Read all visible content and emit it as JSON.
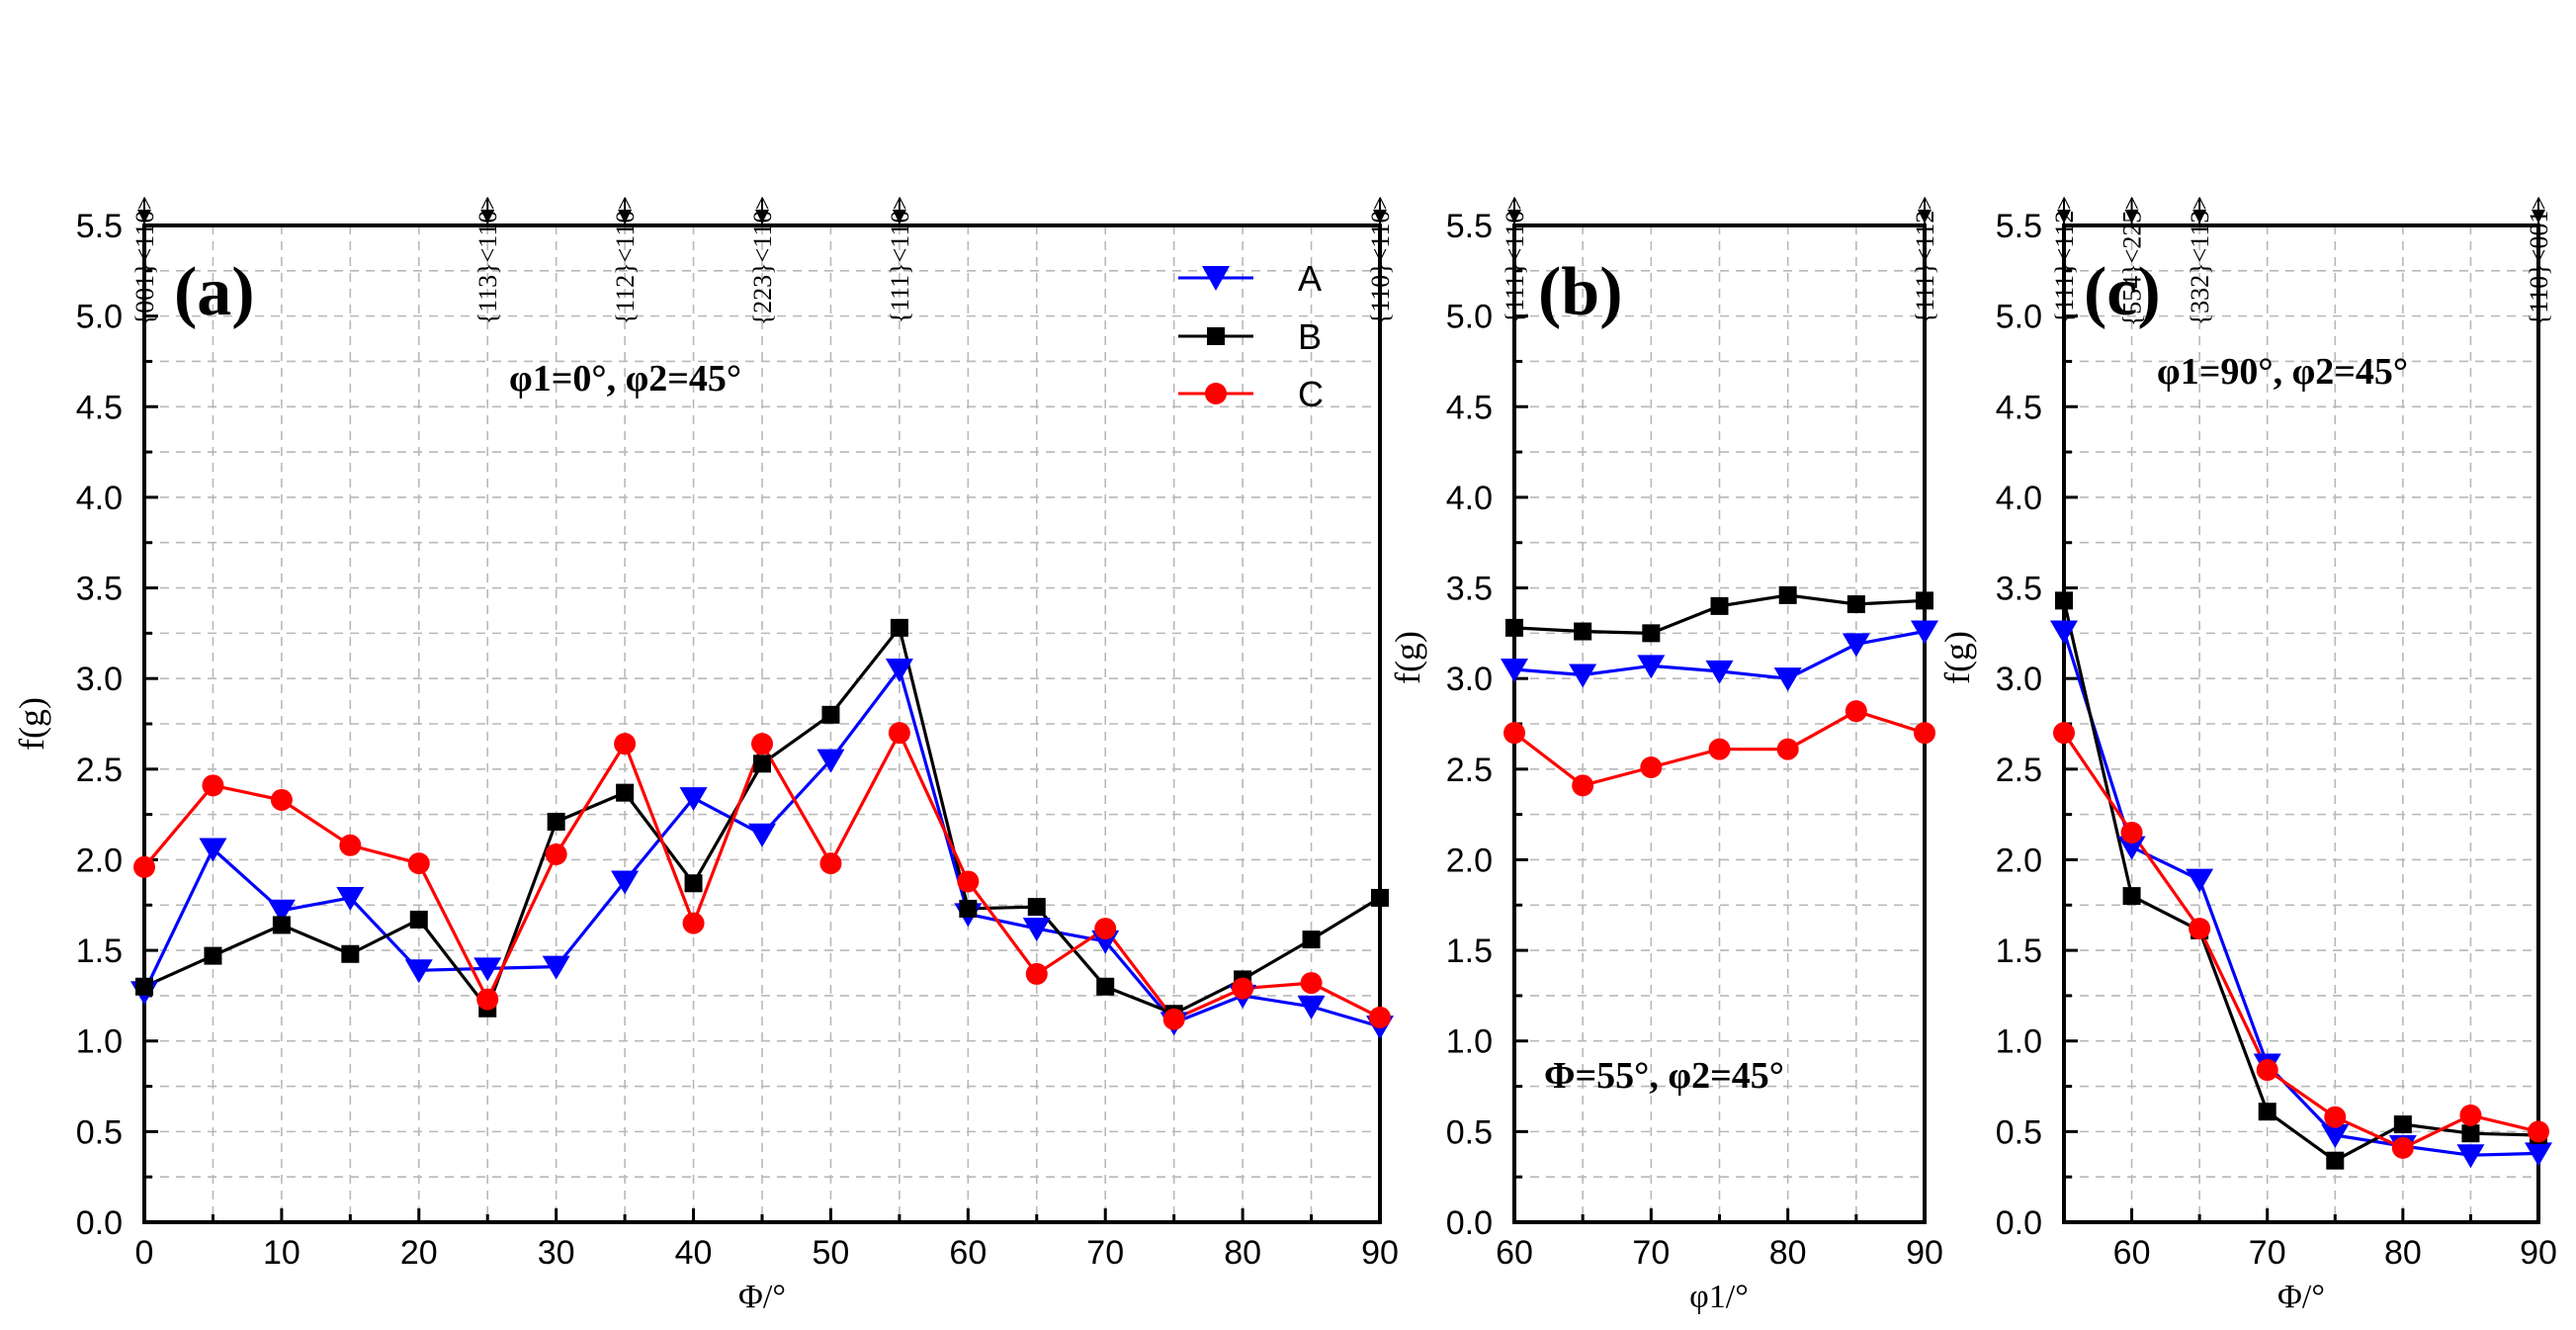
{
  "chart_data": [
    {
      "panel": "(a)",
      "type": "line",
      "subtitle": "φ1=0°, φ2=45°",
      "xlabel": "Φ/°",
      "ylabel": "f(g)",
      "xlim": [
        0,
        90
      ],
      "ylim": [
        0,
        5.5
      ],
      "grid": true,
      "legend": "top-right",
      "xticks": [
        "0",
        "10",
        "20",
        "30",
        "40",
        "50",
        "60",
        "70",
        "80",
        "90"
      ],
      "yticks": [
        "0.0",
        "0.5",
        "1.0",
        "1.5",
        "2.0",
        "2.5",
        "3.0",
        "3.5",
        "4.0",
        "4.5",
        "5.0",
        "5.5"
      ],
      "top_labels": [
        {
          "x": 0,
          "label": "{001}<110>"
        },
        {
          "x": 25,
          "label": "{113}<110>"
        },
        {
          "x": 35,
          "label": "{112}<110>"
        },
        {
          "x": 45,
          "label": "{223}<110>"
        },
        {
          "x": 55,
          "label": "{111}<110>"
        },
        {
          "x": 90,
          "label": "{110}<110>"
        }
      ],
      "x": [
        0,
        5,
        10,
        15,
        20,
        25,
        30,
        35,
        40,
        45,
        50,
        55,
        60,
        65,
        70,
        75,
        80,
        85,
        90
      ],
      "series": [
        {
          "name": "A",
          "color": "#0000ff",
          "marker": "triangle-down",
          "values": [
            1.27,
            2.06,
            1.72,
            1.79,
            1.39,
            1.4,
            1.41,
            1.88,
            2.34,
            2.14,
            2.55,
            3.05,
            1.7,
            1.62,
            1.55,
            1.1,
            1.25,
            1.19,
            1.08
          ]
        },
        {
          "name": "B",
          "color": "#000000",
          "marker": "square",
          "values": [
            1.3,
            1.47,
            1.64,
            1.48,
            1.67,
            1.18,
            2.21,
            2.37,
            1.87,
            2.53,
            2.8,
            3.28,
            1.73,
            1.74,
            1.3,
            1.15,
            1.34,
            1.56,
            1.79
          ]
        },
        {
          "name": "C",
          "color": "#ff0000",
          "marker": "circle",
          "values": [
            1.96,
            2.41,
            2.33,
            2.08,
            1.98,
            1.23,
            2.03,
            2.64,
            1.65,
            2.64,
            1.98,
            2.7,
            1.88,
            1.37,
            1.62,
            1.12,
            1.29,
            1.32,
            1.13
          ]
        }
      ]
    },
    {
      "panel": "(b)",
      "type": "line",
      "subtitle": "Φ=55°, φ2=45°",
      "xlabel": "φ1/°",
      "ylabel": "f(g)",
      "xlim": [
        60,
        90
      ],
      "ylim": [
        0,
        5.5
      ],
      "grid": true,
      "xticks": [
        "60",
        "70",
        "80",
        "90"
      ],
      "yticks": [
        "0.0",
        "0.5",
        "1.0",
        "1.5",
        "2.0",
        "2.5",
        "3.0",
        "3.5",
        "4.0",
        "4.5",
        "5.0",
        "5.5"
      ],
      "top_labels": [
        {
          "x": 60,
          "label": "{111}<110>"
        },
        {
          "x": 90,
          "label": "{111}<112>"
        }
      ],
      "x": [
        60,
        65,
        70,
        75,
        80,
        85,
        90
      ],
      "series": [
        {
          "name": "A",
          "color": "#0000ff",
          "marker": "triangle-down",
          "values": [
            3.05,
            3.02,
            3.07,
            3.04,
            3.0,
            3.19,
            3.26
          ]
        },
        {
          "name": "B",
          "color": "#000000",
          "marker": "square",
          "values": [
            3.28,
            3.26,
            3.25,
            3.4,
            3.46,
            3.41,
            3.43
          ]
        },
        {
          "name": "C",
          "color": "#ff0000",
          "marker": "circle",
          "values": [
            2.7,
            2.41,
            2.51,
            2.61,
            2.61,
            2.82,
            2.7
          ]
        }
      ]
    },
    {
      "panel": "(c)",
      "type": "line",
      "subtitle": "φ1=90°, φ2=45°",
      "xlabel": "Φ/°",
      "ylabel": "f(g)",
      "xlim": [
        55,
        90
      ],
      "ylim": [
        0,
        5.5
      ],
      "grid": true,
      "xticks": [
        "60",
        "70",
        "80",
        "90"
      ],
      "yticks": [
        "0.0",
        "0.5",
        "1.0",
        "1.5",
        "2.0",
        "2.5",
        "3.0",
        "3.5",
        "4.0",
        "4.5",
        "5.0",
        "5.5"
      ],
      "top_labels": [
        {
          "x": 55,
          "label": "{111}<112>"
        },
        {
          "x": 60,
          "label": "{554}<225>"
        },
        {
          "x": 65,
          "label": "{332}<113>"
        },
        {
          "x": 90,
          "label": "{110}<001>"
        }
      ],
      "x": [
        55,
        60,
        65,
        70,
        75,
        80,
        85,
        90
      ],
      "series": [
        {
          "name": "A",
          "color": "#0000ff",
          "marker": "triangle-down",
          "values": [
            3.26,
            2.07,
            1.89,
            0.87,
            0.48,
            0.42,
            0.37,
            0.38
          ]
        },
        {
          "name": "B",
          "color": "#000000",
          "marker": "square",
          "values": [
            3.43,
            1.8,
            1.61,
            0.61,
            0.34,
            0.54,
            0.49,
            0.48
          ]
        },
        {
          "name": "C",
          "color": "#ff0000",
          "marker": "circle",
          "values": [
            2.7,
            2.15,
            1.62,
            0.84,
            0.58,
            0.41,
            0.59,
            0.5
          ]
        }
      ]
    }
  ]
}
